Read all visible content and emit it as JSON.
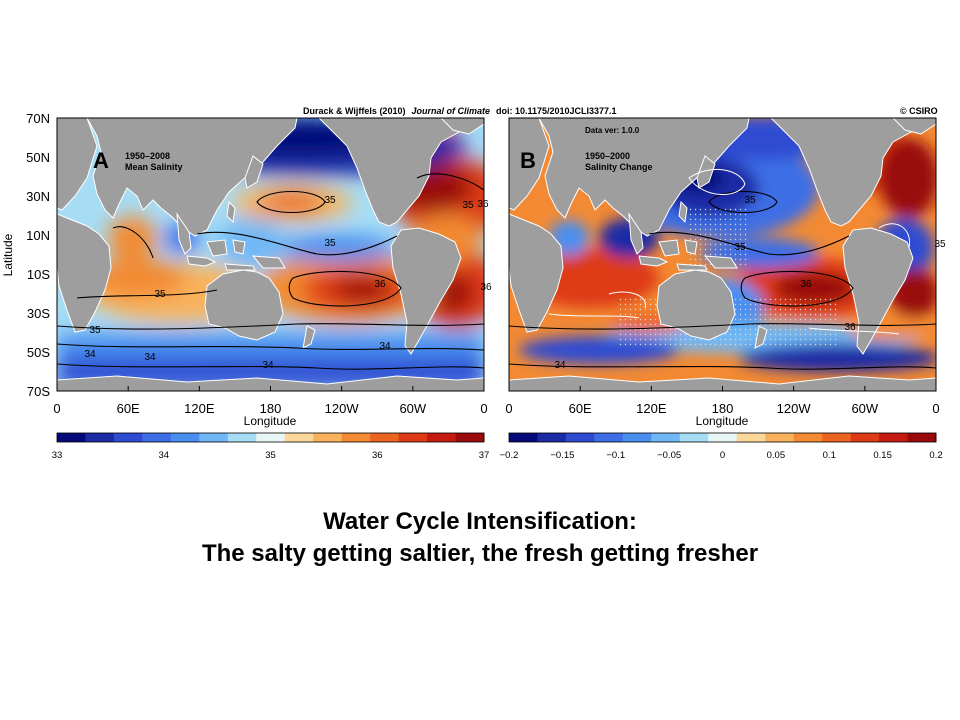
{
  "figure": {
    "header": {
      "authors": "Durack & Wijffels (2010)",
      "journal": "Journal of Climate",
      "doi": "doi: 10.1175/2010JCLI3377.1",
      "copyright": "© CSIRO"
    },
    "y_axis_label": "Latitude",
    "x_axis_label": "Longitude",
    "lat_ticks": [
      "70N",
      "50N",
      "30N",
      "10N",
      "10S",
      "30S",
      "50S",
      "70S"
    ],
    "lon_ticks": [
      "0",
      "60E",
      "120E",
      "180",
      "120W",
      "60W",
      "0"
    ],
    "panels": [
      {
        "letter": "A",
        "title_line1": "1950–2008",
        "title_line2": "Mean Salinity",
        "contour_labels": [
          "35",
          "36",
          "35",
          "36",
          "35",
          "35",
          "34",
          "34",
          "34",
          "34",
          "35",
          "36"
        ],
        "colorbar": {
          "colors": [
            "#060a78",
            "#1c2aa6",
            "#2f4bd2",
            "#3d6ee6",
            "#4a8ff0",
            "#6fb8f5",
            "#a6ddf5",
            "#e8f7f6",
            "#fbd99a",
            "#f9b25c",
            "#f38a33",
            "#ec6520",
            "#de3a16",
            "#c41a10",
            "#9a0a0c"
          ],
          "tick_labels": [
            "33",
            "34",
            "35",
            "36",
            "37"
          ]
        }
      },
      {
        "letter": "B",
        "title_line1": "1950–2000",
        "title_line2": "Salinity Change",
        "data_version": "Data ver: 1.0.0",
        "contour_labels": [
          "35",
          "36",
          "35",
          "36",
          "35",
          "34"
        ],
        "colorbar": {
          "colors": [
            "#060a78",
            "#1c2aa6",
            "#2f4bd2",
            "#3d6ee6",
            "#4a8ff0",
            "#6fb8f5",
            "#a6ddf5",
            "#e8f7f6",
            "#fbd99a",
            "#f9b25c",
            "#f38a33",
            "#ec6520",
            "#de3a16",
            "#c41a10",
            "#9a0a0c"
          ],
          "tick_labels": [
            "−0.2",
            "−0.15",
            "−0.1",
            "−0.05",
            "0",
            "0.05",
            "0.1",
            "0.15",
            "0.2"
          ]
        }
      }
    ]
  },
  "caption": {
    "line1": "Water Cycle Intensification:",
    "line2": "The salty getting saltier, the fresh getting fresher"
  },
  "colors": {
    "land": "#9e9e9e",
    "frame": "#000000"
  }
}
